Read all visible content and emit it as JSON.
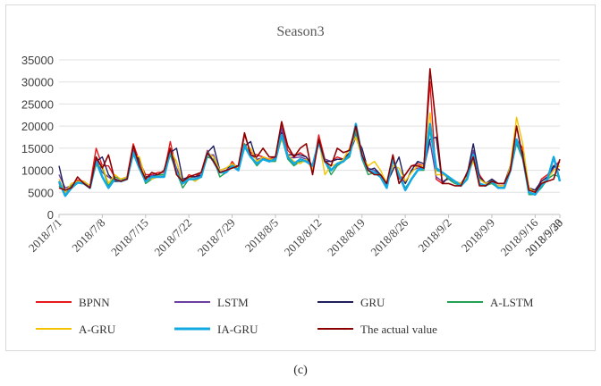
{
  "caption": "(c)",
  "chart_data": {
    "type": "line",
    "title": "Season3",
    "xlabel": "",
    "ylabel": "",
    "ylim": [
      0,
      35000
    ],
    "yticks": [
      0,
      5000,
      10000,
      15000,
      20000,
      25000,
      30000,
      35000
    ],
    "grid": "horizontal",
    "legend_position": "bottom",
    "x_start": "2018/7/1",
    "x_end": "2018/9/30",
    "x_tick_labels": [
      "2018/7/1",
      "2018/7/8",
      "2018/7/15",
      "2018/7/22",
      "2018/7/29",
      "2018/8/5",
      "2018/8/12",
      "2018/8/19",
      "2018/8/26",
      "2018/9/2",
      "2018/9/9",
      "2018/9/16",
      "2018/9/23",
      "2018/9/30"
    ],
    "series": [
      {
        "name": "BPNN",
        "color": "#e8191c",
        "values": [
          7000,
          4500,
          6000,
          7800,
          7500,
          6500,
          15000,
          11000,
          11000,
          8500,
          8000,
          8500,
          16000,
          12000,
          9000,
          9000,
          9500,
          9500,
          16500,
          10000,
          7000,
          9000,
          8500,
          9500,
          14500,
          12000,
          9500,
          9500,
          12000,
          10000,
          18000,
          14000,
          13500,
          13000,
          12500,
          13000,
          20500,
          14500,
          13000,
          14000,
          13000,
          10000,
          18000,
          12500,
          12000,
          13000,
          12500,
          15000,
          20000,
          13000,
          10000,
          9500,
          9000,
          7000,
          13000,
          8000,
          9000,
          11000,
          11500,
          11000,
          30000,
          8000,
          7000,
          8500,
          7500,
          7000,
          8500,
          13500,
          9000,
          7000,
          8000,
          7000,
          7000,
          11000,
          17000,
          15000,
          5000,
          4500,
          8000,
          9000,
          11000,
          12000
        ]
      },
      {
        "name": "LSTM",
        "color": "#6a3fa0",
        "values": [
          9000,
          6000,
          6500,
          7500,
          7200,
          6400,
          12500,
          9500,
          8500,
          7500,
          7500,
          8200,
          14500,
          12000,
          8500,
          8800,
          9000,
          9000,
          14500,
          10500,
          7500,
          8000,
          8000,
          9000,
          13500,
          13500,
          9500,
          10000,
          11000,
          10500,
          16000,
          13500,
          12500,
          12800,
          12200,
          12800,
          19500,
          13000,
          12800,
          13000,
          12500,
          11000,
          16500,
          12500,
          12000,
          12500,
          12500,
          13500,
          18500,
          13000,
          10500,
          10000,
          9000,
          6500,
          12500,
          9000,
          7000,
          10000,
          10500,
          10500,
          16500,
          8500,
          7500,
          8000,
          7500,
          7000,
          8500,
          14500,
          8000,
          7000,
          7500,
          6500,
          6500,
          10500,
          16500,
          13500,
          6000,
          5500,
          7500,
          8500,
          10500,
          12000
        ]
      },
      {
        "name": "GRU",
        "color": "#1f1f5e",
        "values": [
          11000,
          5000,
          6500,
          7500,
          7200,
          6000,
          12000,
          13000,
          9000,
          7500,
          7500,
          8000,
          14000,
          12500,
          8500,
          8500,
          9000,
          9000,
          14000,
          15000,
          8000,
          8500,
          8500,
          9000,
          14000,
          15500,
          10000,
          10500,
          11000,
          11000,
          15500,
          16500,
          12000,
          13000,
          12500,
          12500,
          18500,
          13500,
          13500,
          13500,
          13000,
          11000,
          17000,
          12000,
          12000,
          12500,
          12500,
          14000,
          17500,
          15000,
          10000,
          10500,
          9000,
          7000,
          10000,
          13000,
          7000,
          10000,
          12000,
          11500,
          17000,
          17500,
          7000,
          8500,
          7500,
          7000,
          9000,
          16000,
          8500,
          7000,
          8000,
          7000,
          7000,
          11000,
          16500,
          14000,
          6000,
          5500,
          7500,
          8500,
          11000,
          10000
        ]
      },
      {
        "name": "A-LSTM",
        "color": "#22a153",
        "values": [
          6500,
          5000,
          6500,
          7500,
          7000,
          6000,
          11500,
          10500,
          6500,
          8500,
          8000,
          8000,
          13500,
          11000,
          7000,
          8000,
          9000,
          9000,
          13500,
          9500,
          6000,
          8000,
          8000,
          8500,
          13000,
          12500,
          8500,
          9500,
          11000,
          10000,
          16000,
          13000,
          11000,
          12500,
          12000,
          12000,
          17500,
          12500,
          11000,
          12000,
          12000,
          11000,
          16000,
          12000,
          9000,
          11000,
          12000,
          13000,
          19000,
          12500,
          9000,
          9500,
          9000,
          6000,
          12000,
          9000,
          6000,
          8000,
          10000,
          10000,
          19000,
          10000,
          9500,
          8000,
          7000,
          6500,
          8000,
          13500,
          7000,
          6500,
          7000,
          6000,
          6000,
          10000,
          16000,
          12500,
          4500,
          4500,
          6000,
          8000,
          9000,
          8500
        ]
      },
      {
        "name": "A-GRU",
        "color": "#f5c200",
        "values": [
          8000,
          5000,
          7000,
          7500,
          7500,
          6500,
          11000,
          11000,
          7000,
          9000,
          8000,
          8500,
          13500,
          13000,
          8000,
          8000,
          8500,
          8500,
          14500,
          12000,
          7000,
          8500,
          7500,
          8500,
          14000,
          13000,
          10000,
          10500,
          11500,
          10500,
          15000,
          15000,
          12000,
          13000,
          12500,
          12500,
          17000,
          13500,
          12000,
          11500,
          12500,
          10000,
          17000,
          9000,
          11000,
          11500,
          12500,
          15000,
          17500,
          13000,
          11000,
          12000,
          10000,
          7000,
          11000,
          10500,
          7500,
          9500,
          11000,
          11000,
          23000,
          9000,
          9000,
          8500,
          7500,
          7000,
          8500,
          12000,
          8000,
          7000,
          7500,
          6500,
          6500,
          11000,
          22000,
          16000,
          6000,
          5000,
          7000,
          8000,
          10000,
          11000
        ]
      },
      {
        "name": "IA-GRU",
        "color": "#12a9e3",
        "values": [
          7500,
          4200,
          6000,
          7200,
          7000,
          6000,
          12000,
          8500,
          6000,
          8000,
          7500,
          8000,
          14000,
          10500,
          7500,
          8500,
          8500,
          8500,
          14500,
          9500,
          7000,
          8000,
          8000,
          8500,
          14000,
          12000,
          9500,
          9500,
          11000,
          10000,
          15500,
          13000,
          11500,
          12500,
          12000,
          12500,
          18000,
          13000,
          11500,
          12500,
          12000,
          11000,
          16500,
          12000,
          10000,
          11500,
          12000,
          13500,
          20500,
          13000,
          10000,
          9500,
          8500,
          6000,
          12500,
          9000,
          5500,
          8000,
          10000,
          10500,
          20500,
          10500,
          9500,
          8500,
          7500,
          6500,
          8000,
          13500,
          7000,
          6500,
          7500,
          6000,
          6000,
          10000,
          17000,
          13000,
          5000,
          4500,
          6500,
          8000,
          13000,
          7500
        ]
      },
      {
        "name": "The actual value",
        "color": "#8b0000",
        "values": [
          6000,
          5500,
          6000,
          8500,
          7000,
          6000,
          13000,
          10500,
          13500,
          8000,
          7500,
          8000,
          15500,
          11000,
          8000,
          9500,
          9000,
          10000,
          15000,
          9000,
          7500,
          8500,
          9000,
          9500,
          14000,
          12000,
          9500,
          10000,
          10500,
          11000,
          18500,
          13500,
          13000,
          15000,
          13000,
          13000,
          21000,
          15500,
          13000,
          15000,
          16000,
          9000,
          17000,
          12000,
          11000,
          15000,
          14000,
          14500,
          20000,
          13500,
          10000,
          9000,
          9000,
          7000,
          13500,
          7000,
          9000,
          11000,
          11000,
          10500,
          33000,
          20000,
          7000,
          7000,
          6500,
          6500,
          9500,
          13000,
          6500,
          6500,
          7500,
          7000,
          7000,
          10000,
          20000,
          13000,
          5500,
          5000,
          7000,
          7500,
          8000,
          12500
        ]
      }
    ]
  }
}
